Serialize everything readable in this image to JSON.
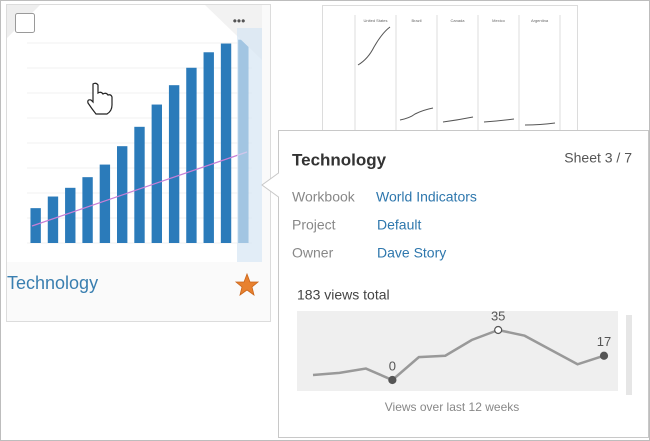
{
  "card": {
    "title": "Technology",
    "menu": "•••",
    "thumbnail": {
      "type": "bar",
      "color": "#2b7bba",
      "trend_color": "#c77fd6",
      "values": [
        36,
        48,
        57,
        68,
        81,
        100,
        120,
        143,
        163,
        181,
        197,
        206,
        210
      ],
      "ylim": [
        0,
        220
      ]
    }
  },
  "background_sheet": {
    "columns": [
      "United States",
      "Brazil",
      "Canada",
      "Mexico",
      "Argentina"
    ]
  },
  "tooltip": {
    "title": "Technology",
    "sheet": "Sheet 3 / 7",
    "rows": [
      [
        "Workbook",
        "World Indicators"
      ],
      [
        "Project",
        "Default"
      ],
      [
        "Owner",
        "Dave Story"
      ]
    ],
    "views_total": "183 views total",
    "chart_data": {
      "type": "line",
      "color": "#999999",
      "values": [
        3.5,
        5,
        8,
        0,
        16,
        17,
        28,
        35,
        31,
        21,
        11,
        17
      ],
      "x_label": "Views over last 12 weeks"
    }
  }
}
